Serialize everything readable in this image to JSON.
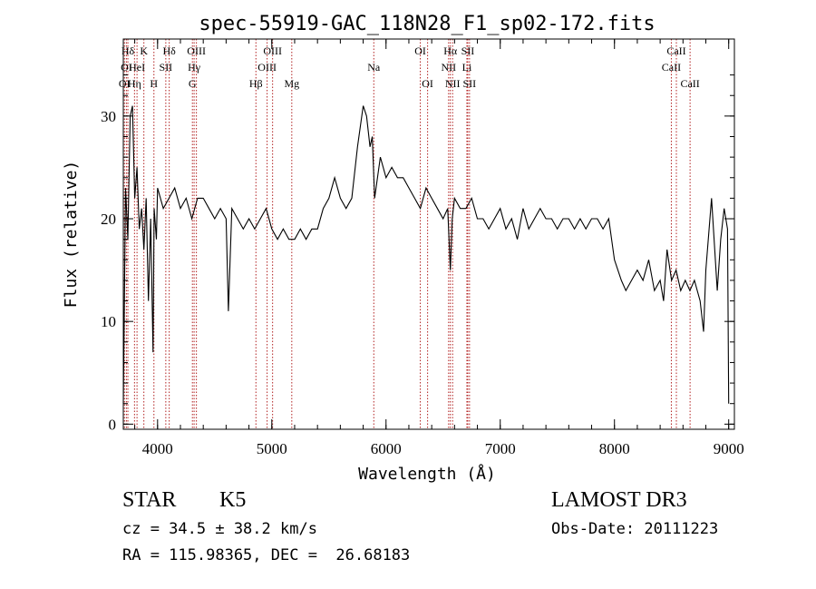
{
  "chart_data": {
    "type": "line",
    "title": "spec-55919-GAC_118N28_F1_sp02-172.fits",
    "xlabel": "Wavelength (Å)",
    "ylabel": "Flux (relative)",
    "xlim": [
      3700,
      9050
    ],
    "ylim": [
      -0.5,
      37.5
    ],
    "xticks": [
      4000,
      5000,
      6000,
      7000,
      8000,
      9000
    ],
    "yticks": [
      0,
      10,
      20,
      30
    ],
    "grid": false,
    "legend": "none",
    "colors": {
      "spectrum": "#000000",
      "lines": "#b22222"
    },
    "spectrum": {
      "x": [
        3700,
        3720,
        3740,
        3760,
        3780,
        3800,
        3820,
        3840,
        3860,
        3880,
        3900,
        3920,
        3940,
        3960,
        3970,
        3990,
        4000,
        4050,
        4100,
        4150,
        4200,
        4250,
        4300,
        4350,
        4400,
        4450,
        4500,
        4550,
        4600,
        4620,
        4650,
        4700,
        4750,
        4800,
        4850,
        4900,
        4950,
        5000,
        5050,
        5100,
        5150,
        5200,
        5250,
        5300,
        5350,
        5400,
        5450,
        5500,
        5550,
        5600,
        5650,
        5700,
        5750,
        5800,
        5830,
        5860,
        5880,
        5900,
        5950,
        6000,
        6050,
        6100,
        6150,
        6200,
        6250,
        6300,
        6350,
        6400,
        6450,
        6500,
        6540,
        6563,
        6580,
        6600,
        6650,
        6700,
        6750,
        6800,
        6850,
        6900,
        6950,
        7000,
        7050,
        7100,
        7150,
        7200,
        7250,
        7300,
        7350,
        7400,
        7450,
        7500,
        7550,
        7600,
        7650,
        7700,
        7750,
        7800,
        7850,
        7900,
        7950,
        8000,
        8030,
        8060,
        8100,
        8150,
        8200,
        8250,
        8300,
        8350,
        8400,
        8430,
        8460,
        8500,
        8540,
        8580,
        8620,
        8660,
        8700,
        8750,
        8780,
        8800,
        8850,
        8900,
        8930,
        8960,
        8990,
        9000
      ],
      "y": [
        2,
        23,
        18,
        30,
        31,
        22,
        25,
        19,
        21,
        17,
        22,
        12,
        20,
        7,
        21,
        18,
        23,
        21,
        22,
        23,
        21,
        22,
        20,
        22,
        22,
        21,
        20,
        21,
        20,
        11,
        21,
        20,
        19,
        20,
        19,
        20,
        21,
        19,
        18,
        19,
        18,
        18,
        19,
        18,
        19,
        19,
        21,
        22,
        24,
        22,
        21,
        22,
        27,
        31,
        30,
        27,
        28,
        22,
        26,
        24,
        25,
        24,
        24,
        23,
        22,
        21,
        23,
        22,
        21,
        20,
        21,
        15,
        20,
        22,
        21,
        21,
        22,
        20,
        20,
        19,
        20,
        21,
        19,
        20,
        18,
        21,
        19,
        20,
        21,
        20,
        20,
        19,
        20,
        20,
        19,
        20,
        19,
        20,
        20,
        19,
        20,
        16,
        15,
        14,
        13,
        14,
        15,
        14,
        16,
        13,
        14,
        12,
        17,
        14,
        15,
        13,
        14,
        13,
        14,
        12,
        9,
        15,
        22,
        13,
        18,
        21,
        19,
        2
      ]
    },
    "lines": [
      {
        "label": "Hδ",
        "x": 3740,
        "row": 0
      },
      {
        "label": "K",
        "x": 3880,
        "row": 0
      },
      {
        "label": "Hδ",
        "x": 4102,
        "row": 0
      },
      {
        "label": "OIII",
        "x": 4340,
        "row": 0
      },
      {
        "label": "OIII",
        "x": 5007,
        "row": 0
      },
      {
        "label": "OI",
        "x": 6300,
        "row": 0
      },
      {
        "label": "Hα",
        "x": 6563,
        "row": 0
      },
      {
        "label": "SII",
        "x": 6716,
        "row": 0
      },
      {
        "label": "CaII",
        "x": 8542,
        "row": 0
      },
      {
        "label": "OI",
        "x": 3727,
        "row": 1
      },
      {
        "label": "HeI",
        "x": 3820,
        "row": 1
      },
      {
        "label": "SII",
        "x": 4072,
        "row": 1
      },
      {
        "label": "Hγ",
        "x": 4320,
        "row": 1
      },
      {
        "label": "OIII",
        "x": 4959,
        "row": 1
      },
      {
        "label": "Na",
        "x": 5893,
        "row": 1
      },
      {
        "label": "NII",
        "x": 6548,
        "row": 1
      },
      {
        "label": "Li",
        "x": 6708,
        "row": 1
      },
      {
        "label": "CaII",
        "x": 8498,
        "row": 1
      },
      {
        "label": "OI",
        "x": 3710,
        "row": 2
      },
      {
        "label": "Hη",
        "x": 3798,
        "row": 2
      },
      {
        "label": "H",
        "x": 3968,
        "row": 2
      },
      {
        "label": "G",
        "x": 4305,
        "row": 2
      },
      {
        "label": "Hβ",
        "x": 4861,
        "row": 2
      },
      {
        "label": "Mg",
        "x": 5175,
        "row": 2
      },
      {
        "label": "OI",
        "x": 6364,
        "row": 2
      },
      {
        "label": "NII",
        "x": 6583,
        "row": 2
      },
      {
        "label": "SII",
        "x": 6731,
        "row": 2
      },
      {
        "label": "CaII",
        "x": 8662,
        "row": 2
      }
    ]
  },
  "info": {
    "object_class": "STAR",
    "subclass": "K5",
    "redshift": "cz = 34.5 ± 38.2 km/s",
    "coords": "RA = 115.98365, DEC =  26.68183",
    "survey": "LAMOST DR3",
    "obs_date": "Obs-Date: 20111223"
  }
}
